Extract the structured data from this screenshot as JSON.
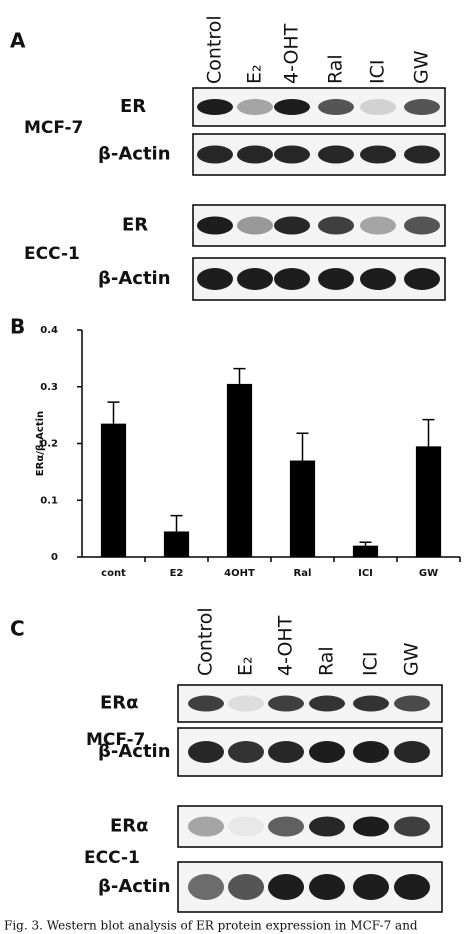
{
  "panel_a": {
    "label": "A",
    "lanes": [
      "Control",
      "E₂",
      "4-OHT",
      "Ral",
      "ICI",
      "GW"
    ],
    "rows": [
      {
        "cell_line": "MCF-7",
        "blots": [
          "ER",
          "β-Actin"
        ]
      },
      {
        "cell_line": "ECC-1",
        "blots": [
          "ER",
          "β-Actin"
        ]
      }
    ]
  },
  "chart_data": {
    "type": "bar",
    "label": "B",
    "ylabel": "ERα/β-Actin",
    "categories": [
      "cont",
      "E2",
      "4OHT",
      "Ral",
      "ICI",
      "GW"
    ],
    "values": [
      0.235,
      0.045,
      0.305,
      0.17,
      0.02,
      0.195
    ],
    "errors": [
      0.038,
      0.028,
      0.027,
      0.048,
      0.006,
      0.047
    ],
    "color": "#000000",
    "ylim": [
      0,
      0.4
    ],
    "yticks": [
      0,
      0.1,
      0.2,
      0.3,
      0.4
    ]
  },
  "panel_c": {
    "label": "C",
    "lanes": [
      "Control",
      "E₂",
      "4-OHT",
      "Ral",
      "ICI",
      "GW"
    ],
    "rows": [
      {
        "cell_line": "MCF-7",
        "blots": [
          "ERα",
          "β-Actin"
        ]
      },
      {
        "cell_line": "ECC-1",
        "blots": [
          "ERα",
          "β-Actin"
        ]
      }
    ]
  },
  "caption": "Fig. 3. Western blot analysis of ER protein expression in MCF-7 and"
}
